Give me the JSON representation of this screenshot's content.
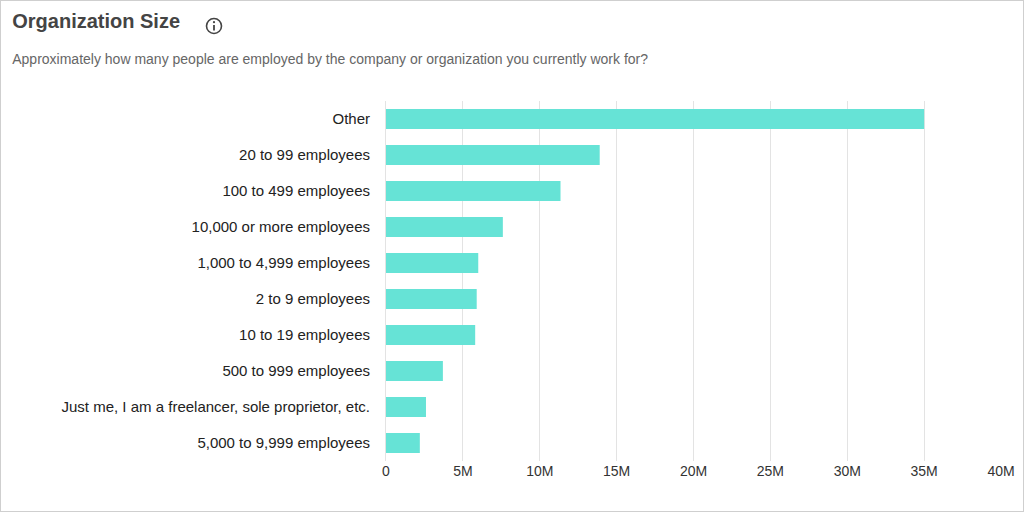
{
  "chart_data": {
    "type": "bar",
    "orientation": "horizontal",
    "title": "Organization Size",
    "subtitle": "Approximately how many people are employed by the company or organization you currently work for?",
    "categories": [
      "Other",
      "20 to 99 employees",
      "100 to 499 employees",
      "10,000 or more employees",
      "1,000 to 4,999 employees",
      "2 to 9 employees",
      "10 to 19 employees",
      "500 to 999 employees",
      "Just me, I am a freelancer, sole proprietor, etc.",
      "5,000 to 9,999 employees"
    ],
    "values": [
      35000000,
      13900000,
      11350000,
      7600000,
      6000000,
      5900000,
      5800000,
      3700000,
      2600000,
      2200000
    ],
    "color": "#66e3d6",
    "xlim": [
      0,
      40000000
    ],
    "xticks": [
      0,
      {
        "value": 5000000,
        "label": "5M"
      },
      {
        "value": 10000000,
        "label": "10M"
      },
      {
        "value": 15000000,
        "label": "15M"
      },
      {
        "value": 20000000,
        "label": "20M"
      },
      {
        "value": 25000000,
        "label": "25M"
      },
      {
        "value": 30000000,
        "label": "30M"
      },
      {
        "value": 35000000,
        "label": "35M"
      },
      {
        "value": 40000000,
        "label": "40M"
      }
    ],
    "grid": true
  }
}
